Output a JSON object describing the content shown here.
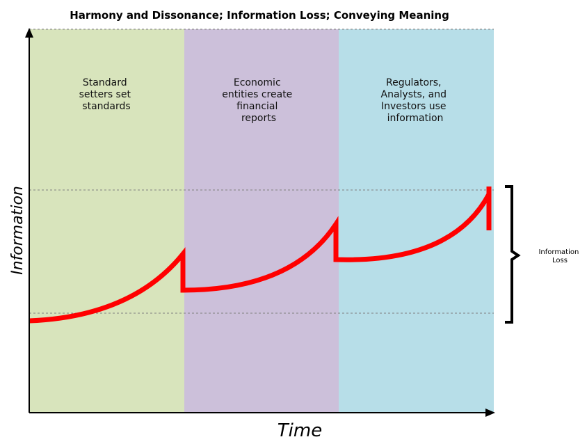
{
  "title": "Harmony and Dissonance; Information Loss; Conveying Meaning",
  "phases": [
    {
      "lines": [
        "Standard",
        "setters set",
        "standards"
      ],
      "color": "#d8e4bc"
    },
    {
      "lines": [
        "Economic",
        "entities create",
        "financial",
        "reports"
      ],
      "color": "#ccc0da"
    },
    {
      "lines": [
        "Regulators,",
        "Analysts, and",
        "Investors use",
        "information"
      ],
      "color": "#b7dee8"
    }
  ],
  "axes": {
    "y_label": "Information",
    "x_label": "Time"
  },
  "bracket": {
    "lines": [
      "Information",
      "Loss"
    ]
  },
  "colors": {
    "curve": "#ff0000",
    "axis": "#000000",
    "gridline": "#7f7f7f"
  }
}
